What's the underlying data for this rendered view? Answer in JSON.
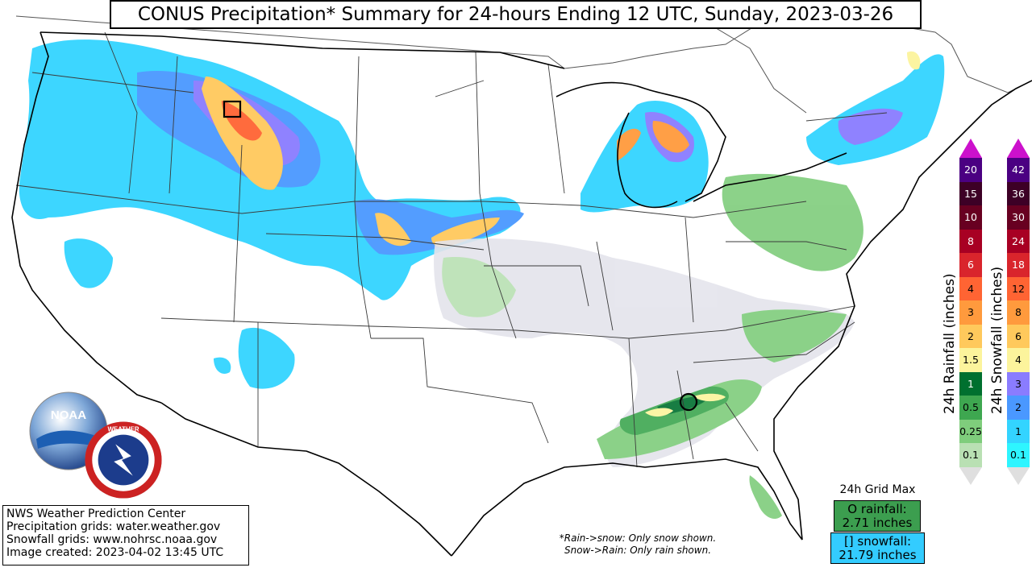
{
  "title": "CONUS Precipitation* Summary for 24-hours Ending 12 UTC, Sunday, 2023-03-26",
  "credits": {
    "line1": "NWS Weather Prediction Center",
    "line2": "Precipitation grids: water.weather.gov",
    "line3": "Snowfall grids: www.nohrsc.noaa.gov",
    "line4": "Image created: 2023-04-02 13:45 UTC"
  },
  "note": {
    "line1": "*Rain->snow: Only snow shown.",
    "line2": "Snow->Rain: Only rain shown."
  },
  "grid_max": {
    "label": "24h Grid Max",
    "rain_label": "O rainfall:",
    "rain_value": "2.71 inches",
    "snow_label": "[] snowfall:",
    "snow_value": "21.79 inches"
  },
  "logos": {
    "noaa": "NOAA",
    "nws": "NATIONAL WEATHER SERVICE"
  },
  "rain_scale": {
    "title": "24h Rainfall (inches)",
    "levels": [
      "20",
      "15",
      "10",
      "8",
      "6",
      "4",
      "3",
      "2",
      "1.5",
      "1",
      "0.5",
      "0.25",
      "0.1"
    ],
    "colors": [
      "#4b0082",
      "#3d0026",
      "#680021",
      "#a80023",
      "#d9252c",
      "#ff6433",
      "#ff9a3d",
      "#ffc95c",
      "#fcf49c",
      "#00702f",
      "#3ea750",
      "#7fcd7c",
      "#b9e0b3"
    ]
  },
  "snow_scale": {
    "title": "24h Snowfall (inches)",
    "levels": [
      "42",
      "36",
      "30",
      "24",
      "18",
      "12",
      "8",
      "6",
      "4",
      "3",
      "2",
      "1",
      "0.1"
    ],
    "colors": [
      "#4b0082",
      "#3d0026",
      "#680021",
      "#a80023",
      "#d9252c",
      "#ff6433",
      "#ff9a3d",
      "#ffc95c",
      "#fcf49c",
      "#8a7cff",
      "#4a98ff",
      "#33d4ff",
      "#2ef5ff"
    ]
  }
}
